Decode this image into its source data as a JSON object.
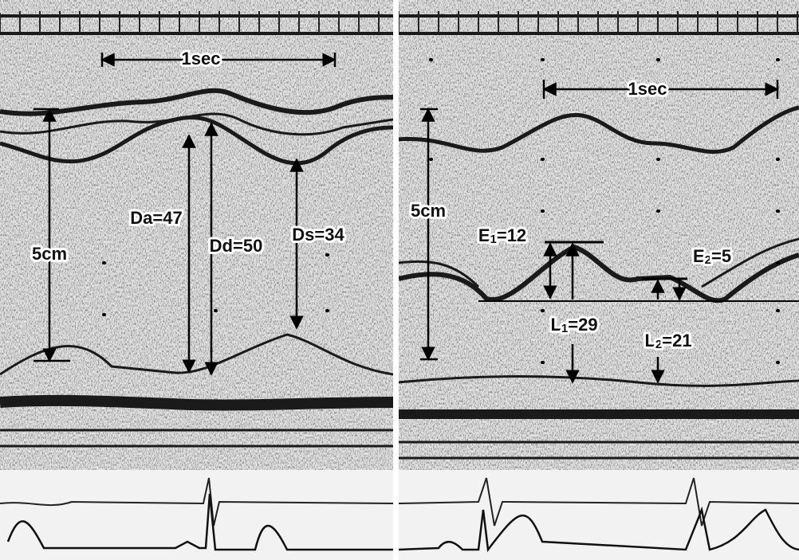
{
  "panels": [
    {
      "scale_time": "1sec",
      "scale_depth": "5cm",
      "labels": [
        "Da=47",
        "Dd=50",
        "Ds=34"
      ]
    },
    {
      "scale_time": "1sec",
      "scale_depth": "5cm",
      "labels": [
        {
          "letter": "E",
          "sub": "1",
          "rest": "=12"
        },
        {
          "letter": "E",
          "sub": "2",
          "rest": "=5"
        },
        {
          "letter": "L",
          "sub": "1",
          "rest": "=29"
        },
        {
          "letter": "L",
          "sub": "2",
          "rest": "=21"
        }
      ]
    }
  ]
}
